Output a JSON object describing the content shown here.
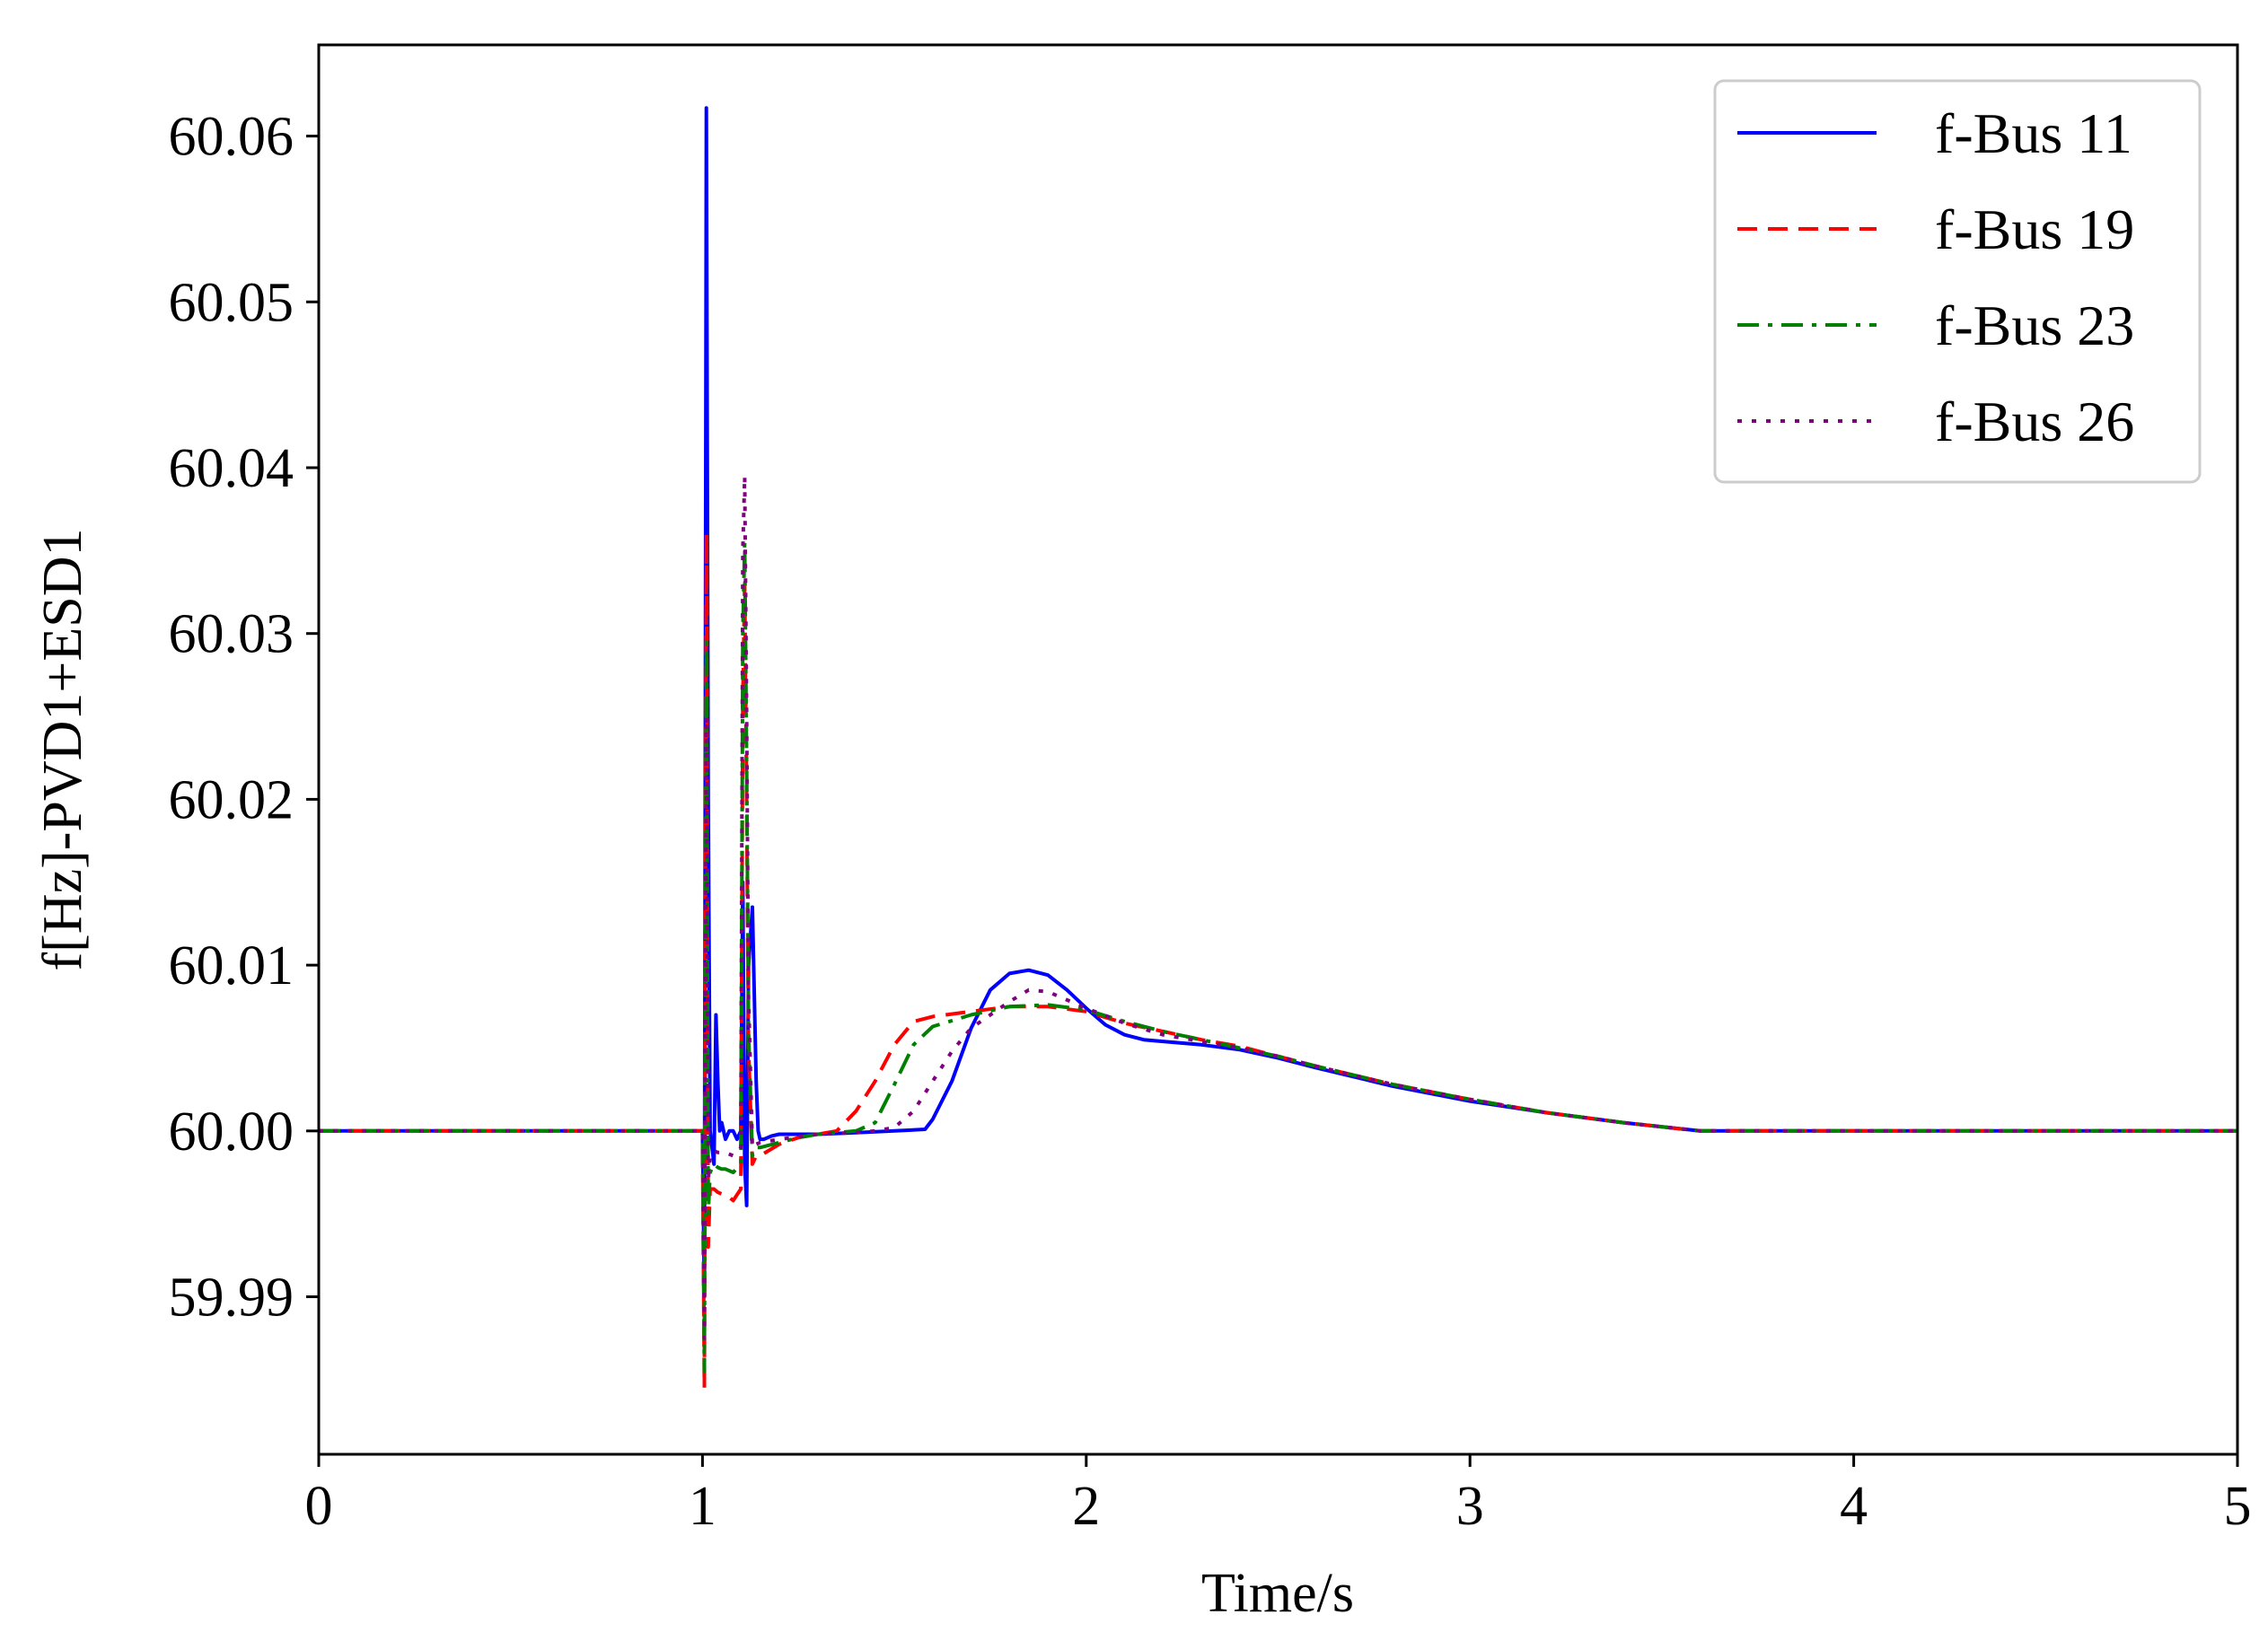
{
  "chart_data": {
    "type": "line",
    "xlabel": "Time/s",
    "ylabel": "f[Hz]-PVD1+ESD1",
    "xlim": [
      0,
      5
    ],
    "ylim": [
      59.9805,
      60.0655
    ],
    "xticks": [
      0,
      1,
      2,
      3,
      4,
      5
    ],
    "xtick_labels": [
      "0",
      "1",
      "2",
      "3",
      "4",
      "5"
    ],
    "yticks": [
      59.99,
      60.0,
      60.01,
      60.02,
      60.03,
      60.04,
      60.05,
      60.06
    ],
    "ytick_labels": [
      "59.99",
      "60.00",
      "60.01",
      "60.02",
      "60.03",
      "60.04",
      "60.05",
      "60.06"
    ],
    "grid": false,
    "legend_position": "top-right",
    "series": [
      {
        "name": "f-Bus 11",
        "color": "#0000ff",
        "style": "solid",
        "x": [
          0,
          1.0,
          1.005,
          1.01,
          1.015,
          1.02,
          1.03,
          1.035,
          1.04,
          1.045,
          1.05,
          1.06,
          1.07,
          1.08,
          1.09,
          1.1,
          1.105,
          1.11,
          1.115,
          1.12,
          1.13,
          1.14,
          1.145,
          1.15,
          1.16,
          1.18,
          1.2,
          1.25,
          1.3,
          1.4,
          1.5,
          1.58,
          1.6,
          1.65,
          1.7,
          1.75,
          1.8,
          1.85,
          1.9,
          1.95,
          2.0,
          2.05,
          2.1,
          2.15,
          2.2,
          2.3,
          2.4,
          2.5,
          2.6,
          2.8,
          3.0,
          3.2,
          3.4,
          3.6,
          3.65,
          3.8,
          4.0,
          4.5,
          5.0
        ],
        "y": [
          60.0,
          60.0,
          59.99,
          60.0617,
          60.02,
          60.0,
          59.998,
          60.007,
          60.003,
          60.0,
          60.0005,
          59.9995,
          60.0,
          60.0,
          59.9995,
          60.0,
          60.015,
          59.998,
          59.9955,
          60.01,
          60.0135,
          60.003,
          60.0,
          59.9995,
          59.9995,
          59.9997,
          59.9998,
          59.9998,
          59.9998,
          59.9999,
          60.0,
          60.0001,
          60.0007,
          60.003,
          60.0062,
          60.0085,
          60.0095,
          60.0097,
          60.0094,
          60.0085,
          60.0074,
          60.0064,
          60.0058,
          60.0055,
          60.0054,
          60.0052,
          60.0049,
          60.0044,
          60.0038,
          60.0027,
          60.0018,
          60.0011,
          60.0005,
          60.0,
          60.0,
          60.0,
          60.0,
          60.0,
          60.0
        ]
      },
      {
        "name": "f-Bus 19",
        "color": "#ff0000",
        "style": "dashed",
        "x": [
          0,
          1.0,
          1.005,
          1.01,
          1.015,
          1.02,
          1.03,
          1.04,
          1.05,
          1.06,
          1.08,
          1.1,
          1.105,
          1.11,
          1.115,
          1.12,
          1.13,
          1.14,
          1.15,
          1.2,
          1.25,
          1.3,
          1.35,
          1.4,
          1.45,
          1.5,
          1.55,
          1.6,
          1.7,
          1.8,
          1.9,
          2.0,
          2.1,
          2.2,
          2.3,
          2.4,
          2.5,
          2.6,
          2.8,
          3.0,
          3.2,
          3.4,
          3.6,
          3.65,
          3.8,
          4.0,
          4.5,
          5.0
        ],
        "y": [
          60.0,
          60.0,
          59.9845,
          60.036,
          59.993,
          59.9965,
          59.9965,
          59.9963,
          59.9962,
          59.9962,
          59.9958,
          59.9965,
          60.026,
          60.033,
          60.02,
          60.005,
          59.998,
          59.9985,
          59.9985,
          59.9992,
          59.9996,
          59.9998,
          60.0,
          60.0012,
          60.003,
          60.0052,
          60.0066,
          60.0069,
          60.0072,
          60.0075,
          60.0075,
          60.0072,
          60.0065,
          60.006,
          60.0055,
          60.0051,
          60.0045,
          60.0039,
          60.0028,
          60.0019,
          60.0011,
          60.0005,
          60.0,
          60.0,
          60.0,
          60.0,
          60.0,
          60.0
        ]
      },
      {
        "name": "f-Bus 23",
        "color": "#008000",
        "style": "dashdot",
        "x": [
          0,
          1.0,
          1.005,
          1.01,
          1.015,
          1.02,
          1.03,
          1.04,
          1.05,
          1.06,
          1.08,
          1.1,
          1.105,
          1.11,
          1.115,
          1.12,
          1.13,
          1.14,
          1.15,
          1.2,
          1.25,
          1.3,
          1.35,
          1.4,
          1.45,
          1.5,
          1.55,
          1.6,
          1.7,
          1.8,
          1.9,
          2.0,
          2.1,
          2.2,
          2.3,
          2.4,
          2.5,
          2.6,
          2.8,
          3.0,
          3.2,
          3.4,
          3.6,
          3.65,
          3.8,
          4.0,
          4.5,
          5.0
        ],
        "y": [
          60.0,
          60.0,
          59.9855,
          60.0295,
          59.995,
          59.9975,
          59.998,
          59.9978,
          59.9977,
          59.9977,
          59.9975,
          59.998,
          60.03,
          60.0355,
          60.022,
          60.006,
          59.9985,
          59.999,
          59.999,
          59.9993,
          59.9996,
          59.9998,
          59.9999,
          60.0,
          60.0005,
          60.0028,
          60.0052,
          60.0063,
          60.007,
          60.0075,
          60.0076,
          60.0073,
          60.0066,
          60.006,
          60.0055,
          60.005,
          60.0045,
          60.0039,
          60.0028,
          60.0019,
          60.0011,
          60.0005,
          60.0,
          60.0,
          60.0,
          60.0,
          60.0,
          60.0
        ]
      },
      {
        "name": "f-Bus 26",
        "color": "#800080",
        "style": "dotted",
        "x": [
          0,
          1.0,
          1.005,
          1.01,
          1.015,
          1.02,
          1.03,
          1.04,
          1.05,
          1.06,
          1.08,
          1.1,
          1.105,
          1.11,
          1.115,
          1.12,
          1.13,
          1.14,
          1.15,
          1.2,
          1.3,
          1.4,
          1.45,
          1.5,
          1.55,
          1.6,
          1.65,
          1.7,
          1.8,
          1.85,
          1.9,
          2.0,
          2.1,
          2.2,
          2.3,
          2.4,
          2.5,
          2.6,
          2.8,
          3.0,
          3.2,
          3.4,
          3.6,
          3.65,
          3.8,
          4.0,
          4.5,
          5.0
        ],
        "y": [
          60.0,
          60.0,
          59.9875,
          60.025,
          59.997,
          59.9985,
          59.9988,
          59.9987,
          59.9987,
          59.9987,
          59.9985,
          59.999,
          60.035,
          60.0395,
          60.025,
          60.008,
          59.999,
          59.9992,
          59.9993,
          59.9995,
          59.9998,
          59.9999,
          60.0,
          60.0002,
          60.0012,
          60.003,
          60.0048,
          60.0062,
          60.0078,
          60.0085,
          60.0084,
          60.0074,
          60.0065,
          60.0058,
          60.0054,
          60.005,
          60.0045,
          60.0039,
          60.0028,
          60.0019,
          60.0011,
          60.0005,
          60.0,
          60.0,
          60.0,
          60.0,
          60.0,
          60.0
        ]
      }
    ]
  }
}
